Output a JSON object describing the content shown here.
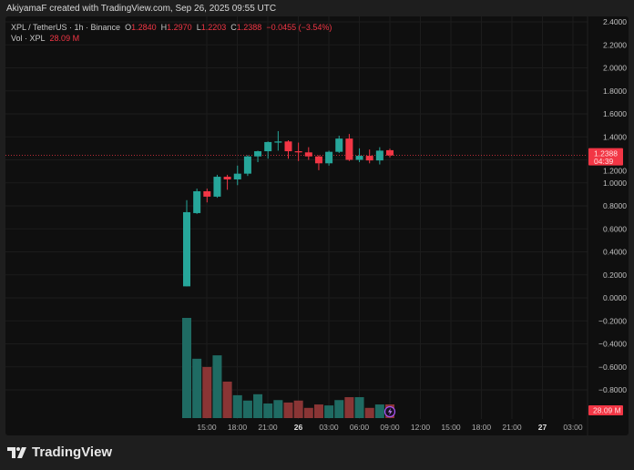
{
  "caption": "AkiyamaF created with TradingView.com, Sep 26, 2025 09:55 UTC",
  "legend": {
    "symbol": "XPL / TetherUS · 1h · Binance",
    "o_label": "O",
    "open": "1.2840",
    "h_label": "H",
    "high": "1.2970",
    "l_label": "L",
    "low": "1.2203",
    "c_label": "C",
    "close": "1.2388",
    "change": "−0.0455 (−3.54%)",
    "vol_label": "Vol · XPL",
    "vol_value": "28.09 M"
  },
  "colors": {
    "up": "#26a69a",
    "down": "#f23645",
    "vol_up": "#1f6b63",
    "vol_down": "#8a3535",
    "background": "#0f0f0f"
  },
  "price_axis": [
    "2.4000",
    "2.2000",
    "2.0000",
    "1.8000",
    "1.6000",
    "1.4000",
    "1.2000",
    "1.0000",
    "0.8000",
    "0.6000",
    "0.4000",
    "0.2000",
    "0.0000",
    "−0.2000",
    "−0.4000",
    "−0.6000",
    "−0.8000"
  ],
  "last_price": {
    "value": "1.2388",
    "countdown": "04:39"
  },
  "volume_tag": "28.09 M",
  "time_axis": [
    {
      "label": "15:00",
      "bold": false
    },
    {
      "label": "18:00",
      "bold": false
    },
    {
      "label": "21:00",
      "bold": false
    },
    {
      "label": "26",
      "bold": true
    },
    {
      "label": "03:00",
      "bold": false
    },
    {
      "label": "06:00",
      "bold": false
    },
    {
      "label": "09:00",
      "bold": false
    },
    {
      "label": "12:00",
      "bold": false
    },
    {
      "label": "15:00",
      "bold": false
    },
    {
      "label": "18:00",
      "bold": false
    },
    {
      "label": "21:00",
      "bold": false
    },
    {
      "label": "27",
      "bold": true
    },
    {
      "label": "03:00",
      "bold": false
    }
  ],
  "chart_data": {
    "type": "candlestick",
    "interval": "1h",
    "x_start": "Sep 25 13:00",
    "ylim": [
      -0.8,
      2.4
    ],
    "grid": true,
    "candles": [
      {
        "o": 0.1,
        "h": 0.85,
        "l": 0.1,
        "c": 0.745,
        "v": 206
      },
      {
        "o": 0.737,
        "h": 0.95,
        "l": 0.73,
        "c": 0.927,
        "v": 122
      },
      {
        "o": 0.927,
        "h": 0.95,
        "l": 0.83,
        "c": 0.88,
        "v": 105
      },
      {
        "o": 0.88,
        "h": 1.07,
        "l": 0.87,
        "c": 1.053,
        "v": 129
      },
      {
        "o": 1.053,
        "h": 1.07,
        "l": 0.94,
        "c": 1.03,
        "v": 75
      },
      {
        "o": 1.03,
        "h": 1.15,
        "l": 0.98,
        "c": 1.08,
        "v": 47
      },
      {
        "o": 1.08,
        "h": 1.24,
        "l": 1.06,
        "c": 1.23,
        "v": 36
      },
      {
        "o": 1.23,
        "h": 1.28,
        "l": 1.18,
        "c": 1.275,
        "v": 49
      },
      {
        "o": 1.275,
        "h": 1.36,
        "l": 1.21,
        "c": 1.355,
        "v": 30
      },
      {
        "o": 1.35,
        "h": 1.45,
        "l": 1.28,
        "c": 1.36,
        "v": 37
      },
      {
        "o": 1.36,
        "h": 1.37,
        "l": 1.21,
        "c": 1.275,
        "v": 32
      },
      {
        "o": 1.275,
        "h": 1.35,
        "l": 1.19,
        "c": 1.265,
        "v": 36
      },
      {
        "o": 1.265,
        "h": 1.31,
        "l": 1.2,
        "c": 1.23,
        "v": 21
      },
      {
        "o": 1.23,
        "h": 1.24,
        "l": 1.11,
        "c": 1.17,
        "v": 28
      },
      {
        "o": 1.17,
        "h": 1.28,
        "l": 1.15,
        "c": 1.27,
        "v": 26
      },
      {
        "o": 1.27,
        "h": 1.41,
        "l": 1.26,
        "c": 1.385,
        "v": 37
      },
      {
        "o": 1.385,
        "h": 1.425,
        "l": 1.19,
        "c": 1.2,
        "v": 43
      },
      {
        "o": 1.2,
        "h": 1.3,
        "l": 1.18,
        "c": 1.235,
        "v": 43
      },
      {
        "o": 1.235,
        "h": 1.29,
        "l": 1.17,
        "c": 1.195,
        "v": 21
      },
      {
        "o": 1.195,
        "h": 1.31,
        "l": 1.16,
        "c": 1.28,
        "v": 28
      },
      {
        "o": 1.284,
        "h": 1.297,
        "l": 1.2203,
        "c": 1.2388,
        "v": 28.09
      }
    ],
    "volume_unit": "M"
  }
}
